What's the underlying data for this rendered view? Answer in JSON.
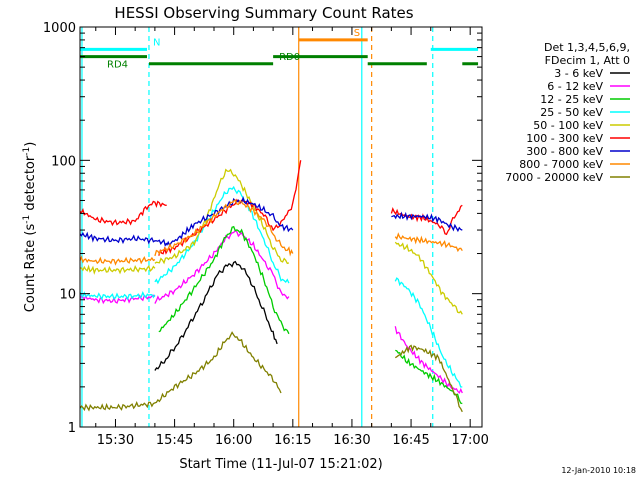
{
  "chart_data": {
    "type": "line",
    "title": "HESSI Observing Summary Count Rates",
    "xlabel": "Start Time (11-Jul-07 15:21:02)",
    "ylabel": {
      "main": "Count Rate (s",
      "sup1": "-1",
      "mid": " detector",
      "sup2": "-1",
      "end": ")"
    },
    "y_scale": "log",
    "ylim": [
      1,
      1000
    ],
    "xlim_minutes": [
      21,
      123
    ],
    "x_ticks": [
      {
        "minute": 30,
        "label": "15:30"
      },
      {
        "minute": 45,
        "label": "15:45"
      },
      {
        "minute": 60,
        "label": "16:00"
      },
      {
        "minute": 75,
        "label": "16:15"
      },
      {
        "minute": 90,
        "label": "16:30"
      },
      {
        "minute": 105,
        "label": "16:45"
      },
      {
        "minute": 120,
        "label": "17:00"
      }
    ],
    "y_ticks": [
      {
        "value": 1,
        "label": "1"
      },
      {
        "value": 10,
        "label": "10"
      },
      {
        "value": 100,
        "label": "100"
      },
      {
        "value": 1000,
        "label": "1000"
      }
    ],
    "legend": {
      "placement": "right",
      "header": [
        "Det 1,3,4,5,6,9,",
        "FDecim 1, Att 0"
      ]
    },
    "series": [
      {
        "name": "3 - 6 keV",
        "color": "#000000",
        "segments": [
          {
            "x": [
              40,
              42,
              44,
              46,
              48,
              50,
              52,
              54,
              56,
              58,
              60,
              62,
              64,
              66,
              68,
              70,
              71
            ],
            "y": [
              2.7,
              3.0,
              3.6,
              4.3,
              5.4,
              6.8,
              8.5,
              11,
              14,
              16,
              17,
              16,
              13,
              9.5,
              7,
              5,
              4.2
            ]
          }
        ]
      },
      {
        "name": "6 - 12 keV",
        "color": "#ff00ff",
        "segments": [
          {
            "x": [
              21,
              25,
              30,
              35,
              40
            ],
            "y": [
              9.5,
              9.0,
              8.8,
              9.2,
              9.5
            ]
          },
          {
            "x": [
              40,
              45,
              50,
              55,
              58,
              60,
              62,
              65,
              68,
              70,
              72,
              74
            ],
            "y": [
              8.8,
              10.5,
              14,
              20,
              26,
              29,
              28,
              23,
              17,
              14,
              10,
              9.5
            ]
          },
          {
            "x": [
              101,
              104,
              108,
              112,
              115,
              118
            ],
            "y": [
              5.5,
              4.0,
              3.0,
              2.4,
              2.0,
              1.8
            ]
          }
        ]
      },
      {
        "name": "12 - 25 keV",
        "color": "#00cc00",
        "segments": [
          {
            "x": [
              41,
              45,
              50,
              55,
              58,
              60,
              62,
              65,
              68,
              70,
              72,
              74
            ],
            "y": [
              5.2,
              7,
              11,
              18,
              27,
              31,
              29,
              20,
              12,
              8,
              6,
              5
            ]
          },
          {
            "x": [
              101,
              104,
              108,
              112,
              116,
              118
            ],
            "y": [
              3.8,
              3.1,
              2.6,
              2.2,
              1.8,
              1.5
            ]
          }
        ]
      },
      {
        "name": "25 - 50 keV",
        "color": "#00ffff",
        "segments": [
          {
            "x": [
              21,
              25,
              30,
              35,
              40
            ],
            "y": [
              9.8,
              9.6,
              9.5,
              9.6,
              9.8
            ]
          },
          {
            "x": [
              40,
              45,
              50,
              55,
              58,
              60,
              62,
              65,
              68,
              70,
              72,
              74
            ],
            "y": [
              12,
              16,
              24,
              42,
              58,
              62,
              55,
              38,
              24,
              17,
              13,
              12
            ]
          },
          {
            "x": [
              101,
              104,
              107,
              110,
              113,
              116,
              118
            ],
            "y": [
              13,
              11,
              8.5,
              5.5,
              3.4,
              2.4,
              2.0
            ]
          }
        ]
      },
      {
        "name": "50 - 100 keV",
        "color": "#cccc00",
        "segments": [
          {
            "x": [
              21,
              25,
              30,
              35,
              40
            ],
            "y": [
              15.5,
              15,
              15,
              15.2,
              15.5
            ]
          },
          {
            "x": [
              40,
              45,
              50,
              53,
              56,
              58,
              60,
              62,
              65,
              68,
              70,
              72,
              74
            ],
            "y": [
              17,
              19,
              24,
              36,
              62,
              84,
              80,
              65,
              45,
              30,
              22,
              18,
              17
            ]
          },
          {
            "x": [
              101,
              104,
              107,
              110,
              113,
              116,
              118
            ],
            "y": [
              24,
              22,
              19,
              14,
              10,
              8,
              7
            ]
          }
        ]
      },
      {
        "name": "100 - 300 keV",
        "color": "#ff0000",
        "segments": [
          {
            "x": [
              21,
              25,
              30,
              35,
              38,
              40,
              43
            ],
            "y": [
              42,
              36,
              34,
              35,
              45,
              48,
              46
            ]
          },
          {
            "x": [
              41,
              45,
              50,
              55,
              60,
              62,
              65,
              68,
              70,
              72,
              75,
              77
            ],
            "y": [
              20,
              22,
              28,
              36,
              47,
              50,
              46,
              38,
              30,
              34,
              46,
              100
            ]
          },
          {
            "x": [
              100,
              104,
              108,
              112,
              114,
              116,
              118
            ],
            "y": [
              42,
              38,
              37,
              33,
              28,
              38,
              46
            ]
          }
        ]
      },
      {
        "name": "300 - 800 keV",
        "color": "#0000cc",
        "segments": [
          {
            "x": [
              21,
              25,
              30,
              35,
              40,
              43
            ],
            "y": [
              28,
              26,
              25,
              26,
              25,
              24
            ]
          },
          {
            "x": [
              43,
              46,
              50,
              55,
              60,
              62,
              65,
              68,
              70,
              72,
              75
            ],
            "y": [
              23,
              26,
              33,
              40,
              49,
              50,
              47,
              42,
              38,
              32,
              30
            ]
          },
          {
            "x": [
              100,
              104,
              108,
              112,
              115,
              118
            ],
            "y": [
              38,
              38,
              38,
              36,
              32,
              30
            ]
          }
        ]
      },
      {
        "name": "800 - 7000 keV",
        "color": "#ff8800",
        "segments": [
          {
            "x": [
              21,
              25,
              30,
              35,
              40
            ],
            "y": [
              18,
              17.5,
              17.5,
              17.8,
              18
            ]
          },
          {
            "x": [
              40,
              45,
              50,
              55,
              58,
              60,
              62,
              65,
              68,
              70,
              72,
              74,
              75
            ],
            "y": [
              20,
              23,
              28,
              38,
              45,
              49,
              48,
              42,
              35,
              28,
              23,
              21,
              20
            ]
          },
          {
            "x": [
              101,
              104,
              108,
              112,
              115,
              118
            ],
            "y": [
              27,
              26,
              25,
              24,
              23,
              21
            ]
          }
        ]
      },
      {
        "name": "7000 - 20000 keV",
        "color": "#808000",
        "segments": [
          {
            "x": [
              21,
              30,
              40,
              45,
              50,
              55,
              58,
              60,
              62,
              65,
              70,
              72
            ],
            "y": [
              1.4,
              1.4,
              1.5,
              2.0,
              2.5,
              3.3,
              4.5,
              5.0,
              4.3,
              3.3,
              2.3,
              1.8
            ]
          },
          {
            "x": [
              101,
              105,
              108,
              112,
              116,
              118
            ],
            "y": [
              3.3,
              4.0,
              3.8,
              3.3,
              1.8,
              1.3
            ]
          }
        ]
      }
    ],
    "state_bars": [
      {
        "label": "N",
        "color": "#00ffff",
        "level": 680,
        "ranges": [
          [
            21,
            38
          ],
          [
            110,
            122
          ]
        ]
      },
      {
        "label": "S",
        "color": "#ff8800",
        "level": 800,
        "ranges": [
          [
            76.5,
            94
          ]
        ]
      },
      {
        "label": "RD0",
        "color": "#008000",
        "level": 530,
        "ranges": [
          [
            38.5,
            70
          ],
          [
            94,
            109
          ],
          [
            118,
            122
          ]
        ]
      },
      {
        "label": "RD4",
        "color": "#008000",
        "level": 600,
        "ranges": [
          [
            21,
            38
          ],
          [
            70,
            94
          ]
        ]
      }
    ],
    "event_lines": [
      {
        "minute": 21.5,
        "color": "#00ffff",
        "style": "solid"
      },
      {
        "minute": 38.5,
        "color": "#00ffff",
        "style": "dashed"
      },
      {
        "minute": 76.5,
        "color": "#ff8800",
        "style": "solid"
      },
      {
        "minute": 92.5,
        "color": "#00ffff",
        "style": "solid"
      },
      {
        "minute": 95,
        "color": "#ff8800",
        "style": "dashed"
      },
      {
        "minute": 110.5,
        "color": "#00ffff",
        "style": "dashed"
      }
    ]
  },
  "footer": {
    "timestamp": "12-Jan-2010 10:18"
  }
}
